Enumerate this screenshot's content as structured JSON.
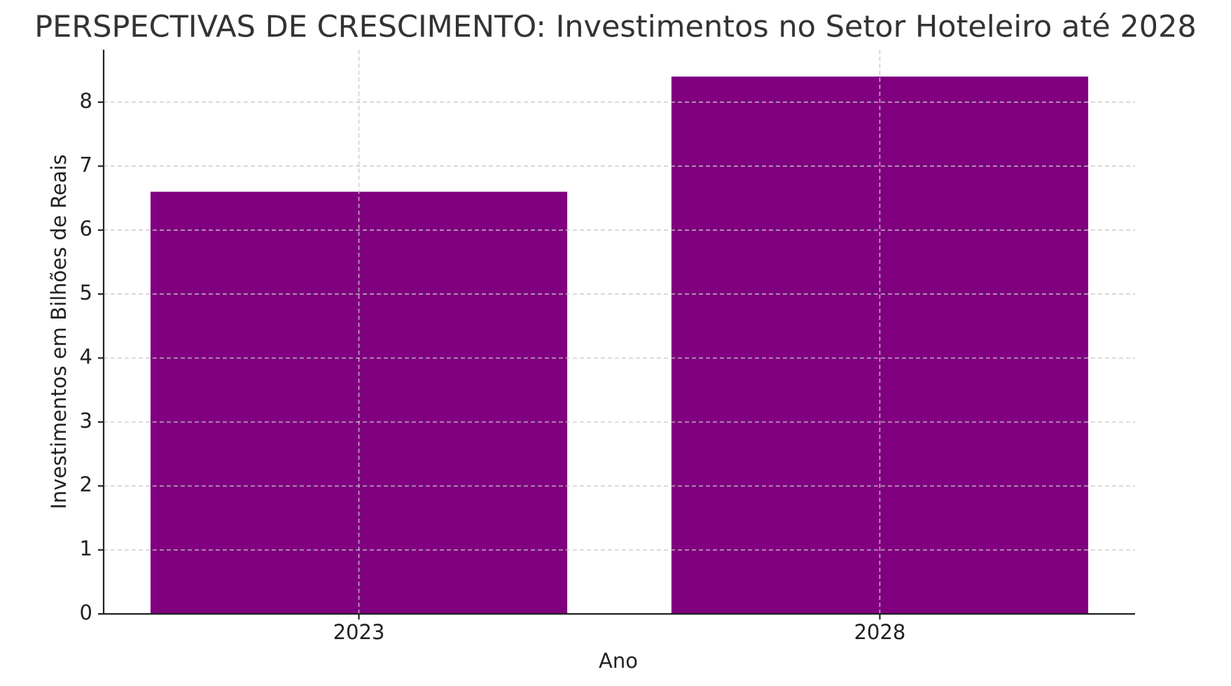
{
  "chart_data": {
    "type": "bar",
    "title": "PERSPECTIVAS DE CRESCIMENTO: Investimentos no Setor Hoteleiro até 2028",
    "x_label": "Ano",
    "y_label": "Investimentos em Bilhões de Reais",
    "categories": [
      "2023",
      "2028"
    ],
    "values": [
      6.6,
      8.4
    ],
    "color": "#800080",
    "ylim": [
      0,
      8.82
    ],
    "yticks": [
      0,
      1,
      2,
      3,
      4,
      5,
      6,
      7,
      8
    ],
    "grid": true
  }
}
